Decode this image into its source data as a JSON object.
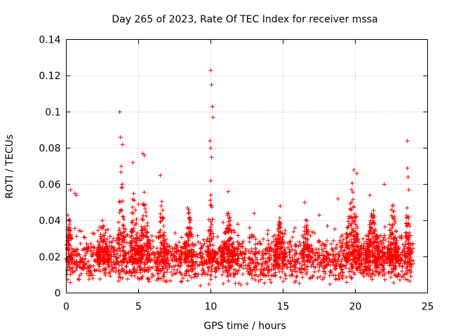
{
  "chart_data": {
    "type": "scatter",
    "title": "Day 265 of 2023, Rate Of TEC Index for receiver mssa",
    "xlabel": "GPS time / hours",
    "ylabel": "ROTI / TECUs",
    "xlim": [
      0,
      25
    ],
    "ylim": [
      0,
      0.14
    ],
    "x_ticks": [
      0,
      5,
      10,
      15,
      20,
      25
    ],
    "x_tick_labels": [
      "0",
      "5",
      "10",
      "15",
      "20",
      "25"
    ],
    "y_ticks": [
      0,
      0.02,
      0.04,
      0.06,
      0.08,
      0.1,
      0.12,
      0.14
    ],
    "y_tick_labels": [
      "0",
      "0.02",
      "0.04",
      "0.06",
      "0.08",
      "0.1",
      "0.12",
      "0.14"
    ],
    "grid": true,
    "marker": "plus",
    "series_color": "#ff0000",
    "series": [
      {
        "name": "ROTI",
        "points": [
          [
            0.1,
            0.043
          ],
          [
            0.3,
            0.057
          ],
          [
            0.6,
            0.055
          ],
          [
            0.7,
            0.054
          ],
          [
            3.7,
            0.1
          ],
          [
            3.75,
            0.086
          ],
          [
            3.8,
            0.07
          ],
          [
            3.9,
            0.082
          ],
          [
            4.6,
            0.072
          ],
          [
            5.3,
            0.077
          ],
          [
            5.4,
            0.076
          ],
          [
            6.5,
            0.065
          ],
          [
            10.0,
            0.123
          ],
          [
            10.05,
            0.115
          ],
          [
            10.1,
            0.103
          ],
          [
            10.15,
            0.097
          ],
          [
            9.95,
            0.084
          ],
          [
            10.0,
            0.08
          ],
          [
            10.05,
            0.075
          ],
          [
            10.0,
            0.062
          ],
          [
            11.2,
            0.056
          ],
          [
            14.8,
            0.048
          ],
          [
            16.5,
            0.05
          ],
          [
            18.8,
            0.052
          ],
          [
            19.9,
            0.068
          ],
          [
            20.1,
            0.066
          ],
          [
            21.0,
            0.054
          ],
          [
            22.0,
            0.06
          ],
          [
            23.6,
            0.084
          ],
          [
            23.6,
            0.069
          ],
          [
            23.65,
            0.064
          ],
          [
            23.7,
            0.057
          ],
          [
            2.5,
            0.04
          ],
          [
            5.0,
            0.049
          ],
          [
            8.4,
            0.047
          ],
          [
            13.0,
            0.044
          ],
          [
            17.5,
            0.043
          ],
          [
            22.5,
            0.046
          ]
        ]
      }
    ],
    "baseline": {
      "x_range": [
        0.0,
        24.0
      ],
      "typical_mean": 0.0165,
      "typical_spread": 0.005,
      "min": 0.004
    },
    "activity_bursts": [
      {
        "x": 0.2,
        "width": 0.5,
        "peak": 0.045
      },
      {
        "x": 2.5,
        "width": 0.8,
        "peak": 0.04
      },
      {
        "x": 3.8,
        "width": 0.5,
        "peak": 0.075
      },
      {
        "x": 4.7,
        "width": 0.6,
        "peak": 0.063
      },
      {
        "x": 5.4,
        "width": 0.7,
        "peak": 0.06
      },
      {
        "x": 6.6,
        "width": 0.5,
        "peak": 0.058
      },
      {
        "x": 8.5,
        "width": 0.6,
        "peak": 0.05
      },
      {
        "x": 10.0,
        "width": 0.5,
        "peak": 0.06
      },
      {
        "x": 11.2,
        "width": 0.8,
        "peak": 0.05
      },
      {
        "x": 14.8,
        "width": 0.8,
        "peak": 0.045
      },
      {
        "x": 16.6,
        "width": 0.6,
        "peak": 0.045
      },
      {
        "x": 19.8,
        "width": 1.0,
        "peak": 0.062
      },
      {
        "x": 21.2,
        "width": 1.0,
        "peak": 0.05
      },
      {
        "x": 22.6,
        "width": 0.8,
        "peak": 0.05
      },
      {
        "x": 23.6,
        "width": 0.4,
        "peak": 0.055
      }
    ]
  }
}
